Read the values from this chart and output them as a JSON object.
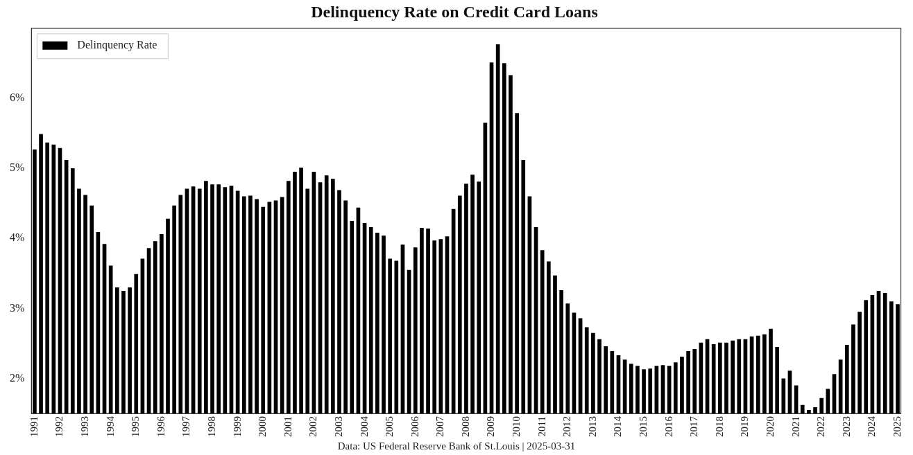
{
  "chart_data": {
    "type": "bar",
    "title": "Delinquency Rate on Credit Card Loans",
    "categories": [
      "1991",
      null,
      null,
      null,
      "1992",
      null,
      null,
      null,
      "1993",
      null,
      null,
      null,
      "1994",
      null,
      null,
      null,
      "1995",
      null,
      null,
      null,
      "1996",
      null,
      null,
      null,
      "1997",
      null,
      null,
      null,
      "1998",
      null,
      null,
      null,
      "1999",
      null,
      null,
      null,
      "2000",
      null,
      null,
      null,
      "2001",
      null,
      null,
      null,
      "2002",
      null,
      null,
      null,
      "2003",
      null,
      null,
      null,
      "2004",
      null,
      null,
      null,
      "2005",
      null,
      null,
      null,
      "2006",
      null,
      null,
      null,
      "2007",
      null,
      null,
      null,
      "2008",
      null,
      null,
      null,
      "2009",
      null,
      null,
      null,
      "2010",
      null,
      null,
      null,
      "2011",
      null,
      null,
      null,
      "2012",
      null,
      null,
      null,
      "2013",
      null,
      null,
      null,
      "2014",
      null,
      null,
      null,
      "2015",
      null,
      null,
      null,
      "2016",
      null,
      null,
      null,
      "2017",
      null,
      null,
      null,
      "2018",
      null,
      null,
      null,
      "2019",
      null,
      null,
      null,
      "2020",
      null,
      null,
      null,
      "2021",
      null,
      null,
      null,
      "2022",
      null,
      null,
      null,
      "2023",
      null,
      null,
      null,
      "2024",
      null,
      null,
      null,
      "2025"
    ],
    "series": [
      {
        "name": "Delinquency Rate",
        "color": "#000000",
        "values": [
          5.27,
          5.49,
          5.37,
          5.34,
          5.29,
          5.12,
          5.0,
          4.71,
          4.62,
          4.47,
          4.09,
          3.92,
          3.61,
          3.3,
          3.25,
          3.3,
          3.49,
          3.71,
          3.86,
          3.96,
          4.06,
          4.28,
          4.47,
          4.62,
          4.71,
          4.74,
          4.71,
          4.82,
          4.77,
          4.77,
          4.73,
          4.75,
          4.68,
          4.6,
          4.61,
          4.56,
          4.45,
          4.52,
          4.54,
          4.59,
          4.82,
          4.95,
          5.01,
          4.71,
          4.95,
          4.8,
          4.9,
          4.85,
          4.69,
          4.54,
          4.25,
          4.44,
          4.22,
          4.16,
          4.08,
          4.04,
          3.71,
          3.68,
          3.91,
          3.55,
          3.87,
          4.15,
          4.14,
          3.97,
          3.99,
          4.03,
          4.42,
          4.61,
          4.78,
          4.91,
          4.81,
          5.65,
          6.51,
          6.77,
          6.5,
          6.33,
          5.79,
          5.12,
          4.6,
          4.16,
          3.83,
          3.67,
          3.47,
          3.26,
          3.07,
          2.94,
          2.86,
          2.73,
          2.65,
          2.56,
          2.46,
          2.39,
          2.33,
          2.27,
          2.21,
          2.18,
          2.13,
          2.14,
          2.18,
          2.19,
          2.18,
          2.23,
          2.31,
          2.39,
          2.42,
          2.51,
          2.56,
          2.49,
          2.51,
          2.51,
          2.54,
          2.56,
          2.56,
          2.6,
          2.61,
          2.63,
          2.71,
          2.45,
          2.0,
          2.11,
          1.9,
          1.62,
          1.55,
          1.59,
          1.72,
          1.85,
          2.06,
          2.27,
          2.48,
          2.77,
          2.95,
          3.12,
          3.19,
          3.25,
          3.22,
          3.1,
          3.06
        ]
      }
    ],
    "ylim": [
      1.5,
      7.0
    ],
    "yticks": [
      {
        "value": 2,
        "label": "2%"
      },
      {
        "value": 3,
        "label": "3%"
      },
      {
        "value": 4,
        "label": "4%"
      },
      {
        "value": 5,
        "label": "5%"
      },
      {
        "value": 6,
        "label": "6%"
      }
    ],
    "grid": false,
    "legend": "top left",
    "annotations": [
      "Data: US Federal Reserve Bank of St.Louis | 2025-03-31"
    ]
  }
}
